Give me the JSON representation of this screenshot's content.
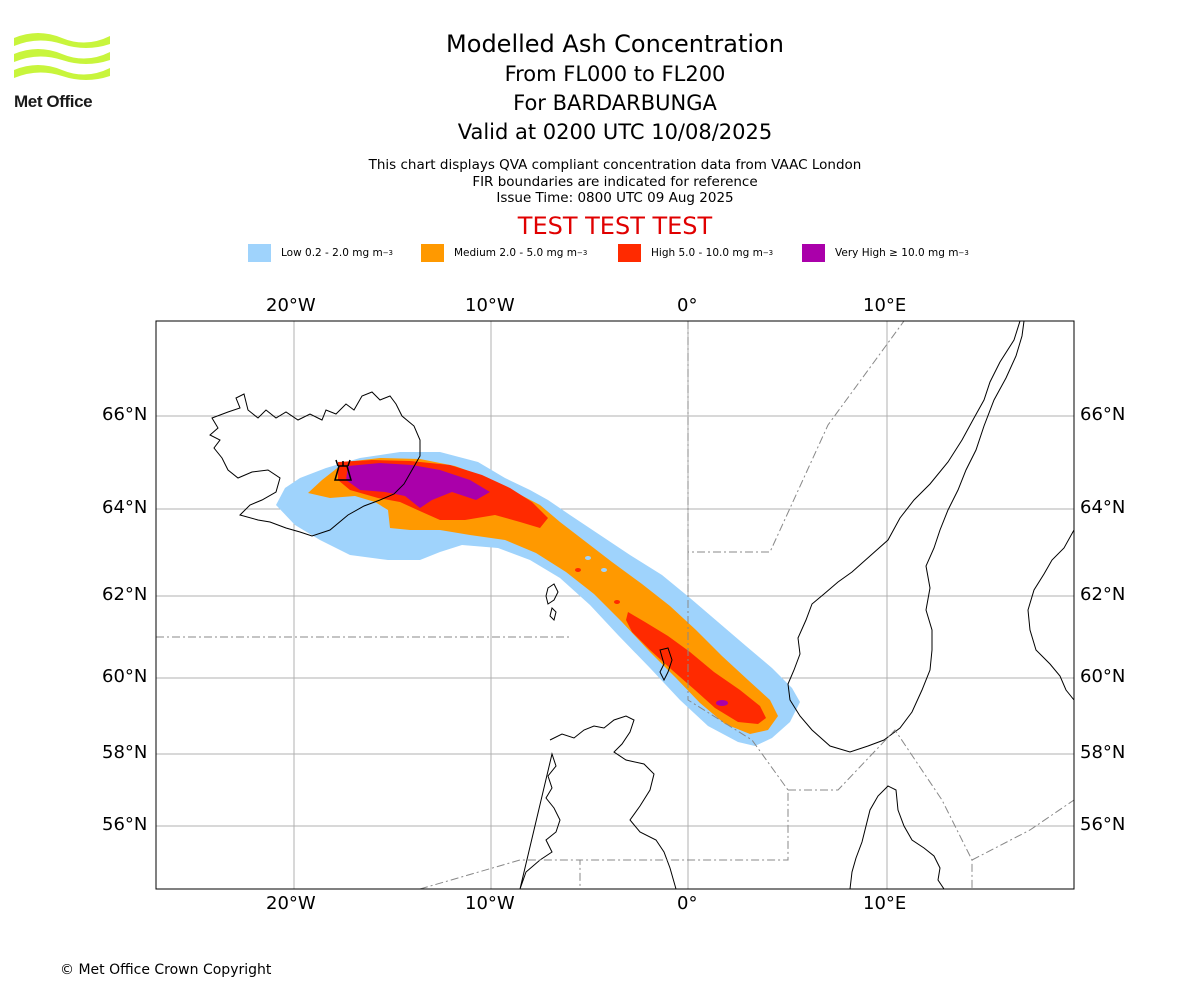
{
  "brand": {
    "name": "Met Office",
    "logo_color": "#c8f53c"
  },
  "header": {
    "title": "Modelled Ash Concentration",
    "level_range": "From FL000 to FL200",
    "volcano": "For BARDARBUNGA",
    "valid": "Valid at 0200 UTC 10/08/2025",
    "note1": "This chart displays QVA compliant concentration data from VAAC London",
    "note2": "FIR boundaries are indicated for reference",
    "issue": "Issue Time: 0800 UTC 09 Aug 2025",
    "test_banner": "TEST TEST TEST"
  },
  "legend": [
    {
      "label": "Low 0.2 - 2.0 mg m",
      "unit_exp": "−3",
      "color": "#9fd3fc"
    },
    {
      "label": "Medium 2.0 - 5.0 mg m",
      "unit_exp": "−3",
      "color": "#ff9900"
    },
    {
      "label": "High 5.0 - 10.0 mg m",
      "unit_exp": "−3",
      "color": "#ff2a00"
    },
    {
      "label": "Very High ≥ 10.0 mg m",
      "unit_exp": "−3",
      "color": "#aa00aa"
    }
  ],
  "map": {
    "lon_ticks": [
      "20°W",
      "10°W",
      "0°",
      "10°E"
    ],
    "lat_ticks": [
      "66°N",
      "64°N",
      "62°N",
      "60°N",
      "58°N",
      "56°N"
    ],
    "extent": {
      "lon": [
        -27,
        19.5
      ],
      "lat": [
        54.5,
        68
      ]
    },
    "gridlines": true
  },
  "footer": {
    "copyright": "© Met Office Crown Copyright"
  }
}
